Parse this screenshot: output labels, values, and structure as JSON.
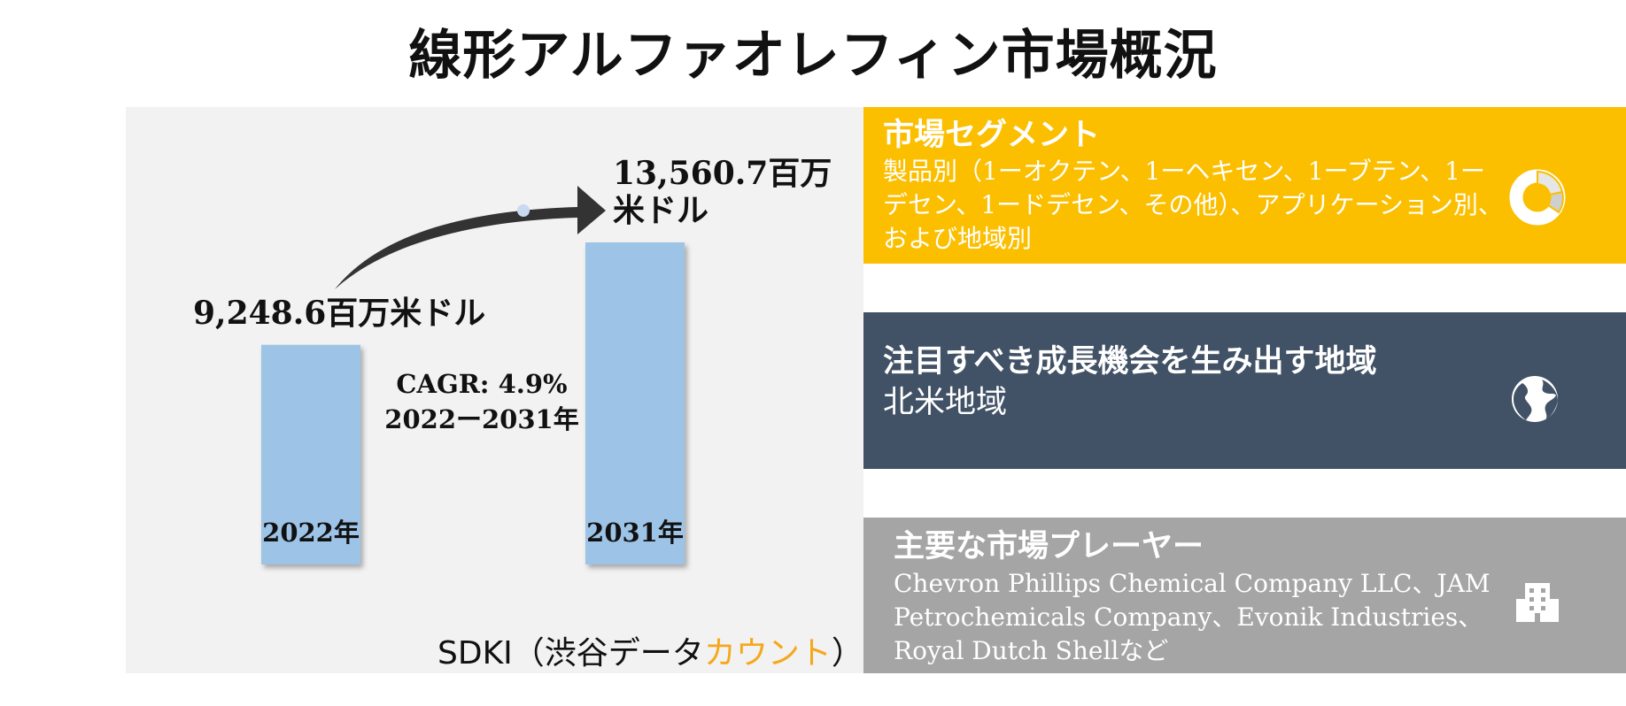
{
  "title": "線形アルファオレフィン市場概況",
  "chart_data": {
    "type": "bar",
    "categories": [
      "2022年",
      "2031年"
    ],
    "values": [
      9248.6,
      13560.7
    ],
    "value_labels": [
      "9,248.6百万米ドル",
      "13,560.7百万\n米ドル"
    ],
    "cagr": "CAGR: 4.9%",
    "cagr_period": "2022ー2031年",
    "bar_color": "#9dc3e6"
  },
  "source": {
    "prefix": "SDKI（渋谷データ",
    "accent": "カウント",
    "suffix": "）",
    "accent_color": "#f5a81c"
  },
  "cards": {
    "segments": {
      "title": "市場セグメント",
      "body": "製品別（1ーオクテン、1ーヘキセン、1ーブテン、1ーデセン、1ードデセン、その他）、アプリケーション別、および地域別",
      "icon": "donut-chart-icon",
      "color": "#fbbf00"
    },
    "region": {
      "title": "注目すべき成長機会を生み出す地域",
      "body": "北米地域",
      "icon": "globe-icon",
      "color": "#425266"
    },
    "players": {
      "title": "主要な市場プレーヤー",
      "body": "Chevron Phillips Chemical Company LLC、JAM Petrochemicals Company、Evonik Industries、Royal Dutch Shellなど",
      "icon": "building-icon",
      "color": "#a5a5a5"
    }
  }
}
